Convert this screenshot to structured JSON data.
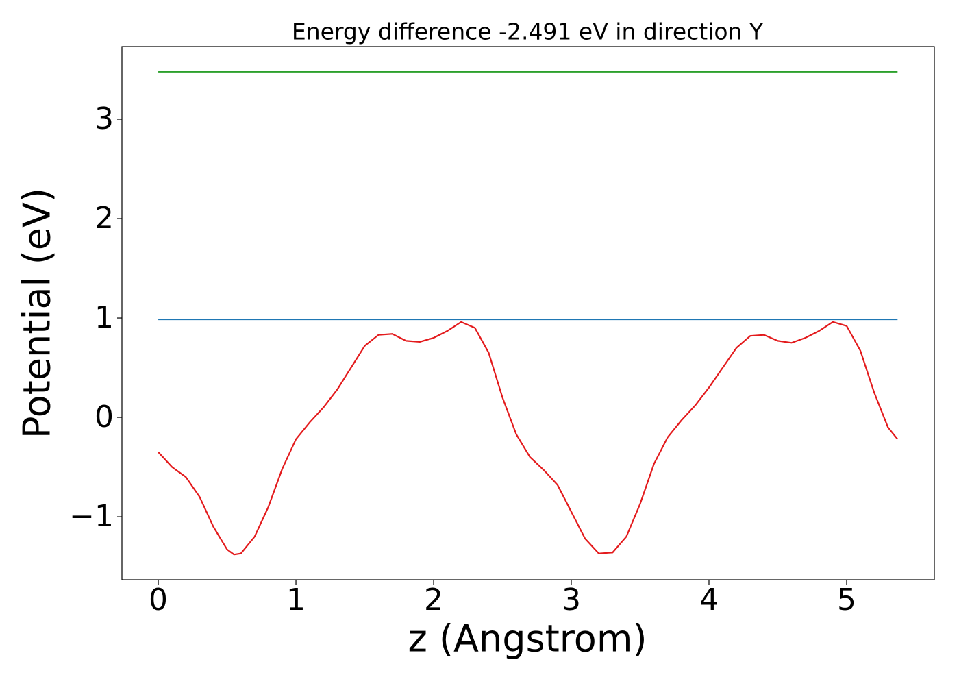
{
  "chart_data": {
    "type": "line",
    "title": "Energy difference -2.491 eV in direction Y",
    "xlabel": "z (Angstrom)",
    "ylabel": "Potential (eV)",
    "xlim": [
      -0.264,
      5.637
    ],
    "ylim": [
      -1.634,
      3.731
    ],
    "xticks": [
      0,
      1,
      2,
      3,
      4,
      5
    ],
    "yticks": [
      {
        "value": -1,
        "label": "−1"
      },
      0,
      1,
      2,
      3
    ],
    "grid": false,
    "series": [
      {
        "color": "#e31a1c",
        "x": [
          0,
          0.1,
          0.2,
          0.3,
          0.4,
          0.5,
          0.55,
          0.6,
          0.7,
          0.8,
          0.9,
          1.0,
          1.1,
          1.2,
          1.3,
          1.4,
          1.5,
          1.6,
          1.7,
          1.8,
          1.9,
          2.0,
          2.1,
          2.2,
          2.3,
          2.4,
          2.5,
          2.6,
          2.7,
          2.8,
          2.9,
          3.0,
          3.1,
          3.2,
          3.3,
          3.4,
          3.5,
          3.6,
          3.7,
          3.8,
          3.9,
          4.0,
          4.1,
          4.2,
          4.3,
          4.4,
          4.5,
          4.6,
          4.7,
          4.8,
          4.9,
          5.0,
          5.1,
          5.2,
          5.3,
          5.37
        ],
        "values": [
          -0.35,
          -0.5,
          -0.6,
          -0.8,
          -1.1,
          -1.33,
          -1.38,
          -1.37,
          -1.2,
          -0.9,
          -0.52,
          -0.22,
          -0.05,
          0.1,
          0.28,
          0.5,
          0.72,
          0.83,
          0.84,
          0.77,
          0.76,
          0.8,
          0.87,
          0.96,
          0.9,
          0.65,
          0.2,
          -0.17,
          -0.4,
          -0.53,
          -0.68,
          -0.95,
          -1.22,
          -1.37,
          -1.36,
          -1.2,
          -0.87,
          -0.47,
          -0.2,
          -0.03,
          0.12,
          0.3,
          0.5,
          0.7,
          0.82,
          0.83,
          0.77,
          0.75,
          0.8,
          0.87,
          0.96,
          0.92,
          0.67,
          0.25,
          -0.1,
          -0.22
        ]
      },
      {
        "color": "#1f77b4",
        "x": [
          0,
          5.37
        ],
        "values": [
          0.986,
          0.986
        ]
      },
      {
        "color": "#2ca02c",
        "x": [
          0,
          5.37
        ],
        "values": [
          3.477,
          3.477
        ]
      }
    ]
  }
}
